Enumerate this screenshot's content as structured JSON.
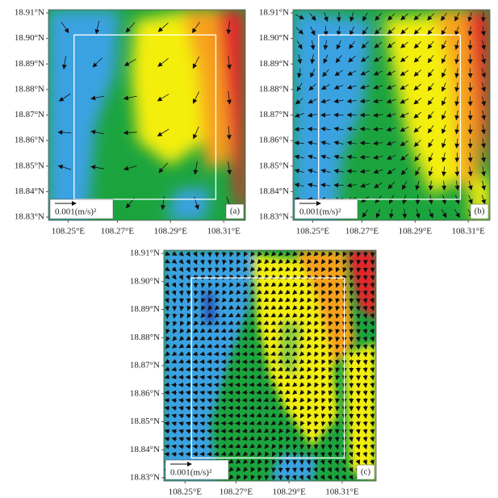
{
  "panels": [
    {
      "label": "(a)",
      "scale_label": "0.001(m/s)²",
      "yticks": [
        "18.91°N",
        "18.90°N",
        "18.89°N",
        "18.88°N",
        "18.87°N",
        "18.86°N",
        "18.85°N",
        "18.84°N",
        "18.83°N"
      ],
      "xticks": [
        "108.25°E",
        "108.27°E",
        "108.29°E",
        "108.31°E"
      ]
    },
    {
      "label": "(b)",
      "scale_label": "0.001(m/s)²",
      "yticks": [
        "18.91°N",
        "18.90°N",
        "18.89°N",
        "18.88°N",
        "18.87°N",
        "18.86°N",
        "18.85°N",
        "18.84°N",
        "18.83°N"
      ],
      "xticks": [
        "108.25°E",
        "108.27°E",
        "108.29°E",
        "108.31°E"
      ]
    },
    {
      "label": "(c)",
      "scale_label": "0.001(m/s)²",
      "yticks": [
        "18.91°N",
        "18.90°N",
        "18.89°N",
        "18.88°N",
        "18.87°N",
        "18.86°N",
        "18.85°N",
        "18.84°N",
        "18.83°N"
      ],
      "xticks": [
        "108.25°E",
        "108.27°E",
        "108.29°E",
        "108.31°E"
      ]
    }
  ]
}
